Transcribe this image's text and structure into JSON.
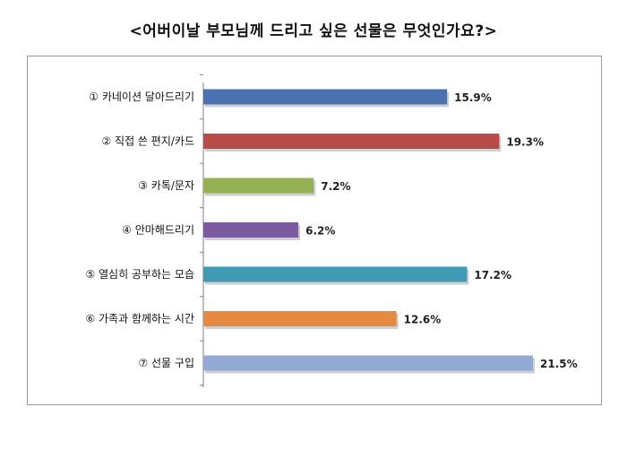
{
  "chart_data": {
    "type": "bar",
    "orientation": "horizontal",
    "title": "<어버이날 부모님께 드리고 싶은 선물은 무엇인가요?>",
    "categories": [
      "① 카네이션 달아드리기",
      "② 직접 쓴 편지/카드",
      "③ 카톡/문자",
      "④ 안마해드리기",
      "⑤ 열심히 공부하는 모습",
      "⑥ 가족과 함께하는 시간",
      "⑦ 선물 구입"
    ],
    "values": [
      15.9,
      19.3,
      7.2,
      6.2,
      17.2,
      12.6,
      21.5
    ],
    "value_labels": [
      "15.9%",
      "19.3%",
      "7.2%",
      "6.2%",
      "17.2%",
      "12.6%",
      "21.5%"
    ],
    "colors": [
      "#4a72b0",
      "#b84a48",
      "#94b253",
      "#7b5aa0",
      "#3f9bb3",
      "#e58b3f",
      "#93a9d6"
    ],
    "xlim": [
      0,
      21.5
    ],
    "grid": false,
    "legend": "none"
  }
}
